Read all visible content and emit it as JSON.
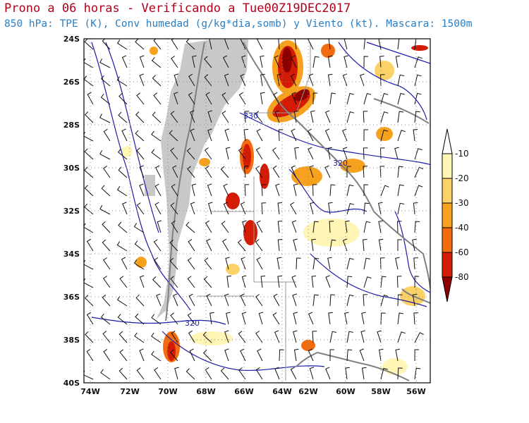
{
  "header": {
    "title": "Prono a 06 horas - Verificando a Tue00Z19DEC2017",
    "subtitle": "850 hPa: TPE (K), Conv humedad (g/kg*dia,somb) y Viento (kt). Mascara: 1500m"
  },
  "map": {
    "lat_labels": [
      "24S",
      "26S",
      "28S",
      "30S",
      "32S",
      "34S",
      "36S",
      "38S",
      "40S"
    ],
    "lon_labels": [
      "74W",
      "72W",
      "70W",
      "68W",
      "66W",
      "64W",
      "62W",
      "60W",
      "58W",
      "56W"
    ],
    "contour_labels": [
      "330",
      "320",
      "320"
    ]
  },
  "legend": {
    "labels": [
      "-10",
      "-20",
      "-30",
      "-40",
      "-60",
      "-80"
    ],
    "colors": [
      "#fff5b5",
      "#fbd267",
      "#f7a21e",
      "#f26c0f",
      "#d41b05",
      "#8c0000"
    ]
  },
  "colors": {
    "title": "#b0001a",
    "subtitle": "#2a7fc4",
    "contour": "#1c1ca8",
    "coast": "#808080",
    "mask": "#c8c8c8"
  }
}
